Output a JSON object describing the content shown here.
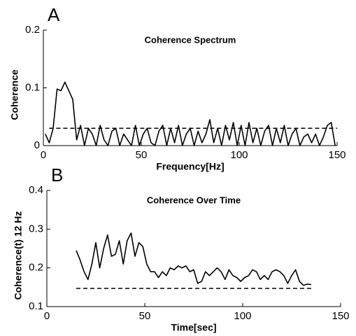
{
  "chart_data": [
    {
      "type": "line",
      "panel_label": "A",
      "title": "Coherence Spectrum",
      "x_label": "Frequency[Hz]",
      "y_label": "Coherence",
      "x": [
        1,
        3,
        5,
        7,
        9,
        11,
        13,
        15,
        17,
        19,
        21,
        23,
        25,
        27,
        29,
        31,
        33,
        35,
        37,
        39,
        41,
        43,
        45,
        47,
        49,
        51,
        53,
        55,
        57,
        59,
        61,
        63,
        65,
        67,
        69,
        71,
        73,
        75,
        77,
        79,
        81,
        83,
        85,
        87,
        89,
        91,
        93,
        95,
        97,
        99,
        101,
        103,
        105,
        107,
        109,
        111,
        113,
        115,
        117,
        119,
        121,
        123,
        125,
        127,
        129,
        131,
        133,
        135,
        137,
        139,
        141,
        143,
        145,
        147,
        149
      ],
      "values": [
        0.02,
        0.005,
        0.03,
        0.098,
        0.095,
        0.11,
        0.095,
        0.08,
        0.01,
        0.035,
        0,
        0.03,
        0.02,
        0,
        0.035,
        0.01,
        0,
        0.025,
        0.03,
        0,
        0.02,
        0.01,
        0,
        0.035,
        0,
        0.02,
        0.03,
        0.005,
        0,
        0.025,
        0.035,
        0,
        0.03,
        0.005,
        0.035,
        0,
        0.02,
        0.03,
        0,
        0.025,
        0.005,
        0.02,
        0.045,
        0.005,
        0.03,
        0,
        0.035,
        0.01,
        0.04,
        0,
        0.035,
        0,
        0.04,
        0.005,
        0.03,
        0,
        0.025,
        0.035,
        0,
        0.03,
        0.005,
        0.035,
        0,
        0.02,
        0.03,
        0,
        0.015,
        0.02,
        0.005,
        0.02,
        0,
        0.015,
        0.035,
        0.04,
        0
      ],
      "color": "#000000",
      "threshold": {
        "value": 0.03,
        "x": [
          3,
          150
        ]
      },
      "xlim": [
        0,
        150
      ],
      "xticks": [
        0,
        50,
        100,
        150
      ],
      "ylim": [
        0,
        0.2
      ],
      "yticks": [
        0,
        0.1,
        0.2
      ]
    },
    {
      "type": "line",
      "panel_label": "B",
      "title": "Coherence Over Time",
      "x_label": "Time[sec]",
      "y_label": "Coherence(t) 12 Hz",
      "x": [
        15,
        17,
        19,
        21,
        23,
        25,
        27,
        29,
        31,
        33,
        35,
        37,
        39,
        41,
        43,
        45,
        47,
        49,
        51,
        53,
        55,
        57,
        59,
        61,
        63,
        65,
        67,
        69,
        71,
        73,
        75,
        77,
        79,
        81,
        83,
        85,
        87,
        89,
        91,
        93,
        95,
        97,
        99,
        101,
        103,
        105,
        107,
        109,
        111,
        113,
        115,
        117,
        119,
        121,
        123,
        125,
        127,
        129,
        131,
        133,
        135
      ],
      "values": [
        0.245,
        0.22,
        0.19,
        0.17,
        0.21,
        0.265,
        0.2,
        0.25,
        0.285,
        0.23,
        0.235,
        0.27,
        0.21,
        0.27,
        0.29,
        0.23,
        0.265,
        0.255,
        0.21,
        0.19,
        0.19,
        0.175,
        0.19,
        0.18,
        0.2,
        0.195,
        0.205,
        0.2,
        0.205,
        0.19,
        0.195,
        0.16,
        0.165,
        0.19,
        0.18,
        0.19,
        0.2,
        0.19,
        0.17,
        0.195,
        0.18,
        0.175,
        0.165,
        0.175,
        0.18,
        0.195,
        0.19,
        0.17,
        0.18,
        0.17,
        0.19,
        0.195,
        0.19,
        0.18,
        0.16,
        0.18,
        0.195,
        0.165,
        0.155,
        0.158,
        0.157
      ],
      "color": "#000000",
      "threshold": {
        "value": 0.147,
        "x": [
          15,
          135
        ]
      },
      "xlim": [
        0,
        150
      ],
      "xticks": [
        0,
        50,
        100,
        150
      ],
      "ylim": [
        0.1,
        0.4
      ],
      "yticks": [
        0.1,
        0.2,
        0.3,
        0.4
      ]
    }
  ]
}
